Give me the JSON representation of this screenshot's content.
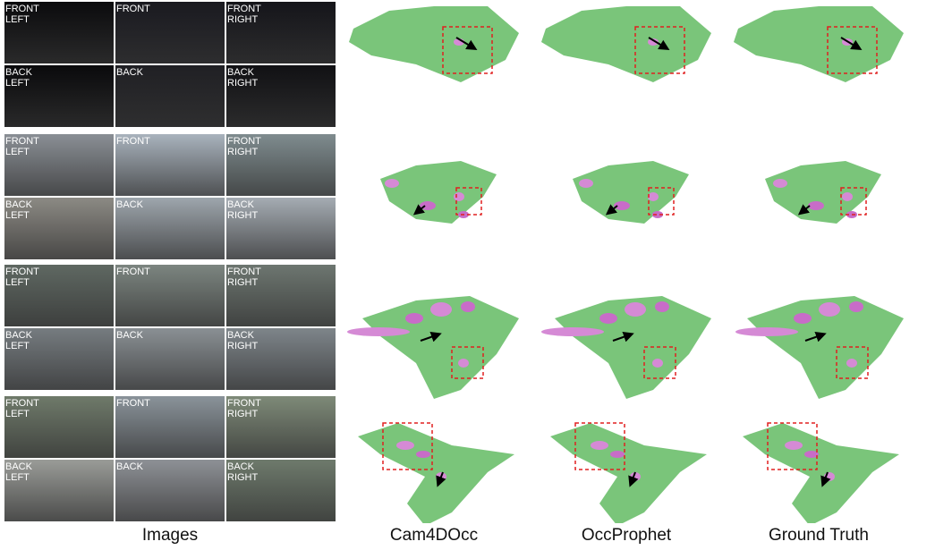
{
  "cameras": [
    "FRONT LEFT",
    "FRONT",
    "FRONT RIGHT",
    "BACK LEFT",
    "BACK",
    "BACK RIGHT"
  ],
  "columns": [
    "Images",
    "Cam4DOcc",
    "OccProphet",
    "Ground Truth"
  ]
}
